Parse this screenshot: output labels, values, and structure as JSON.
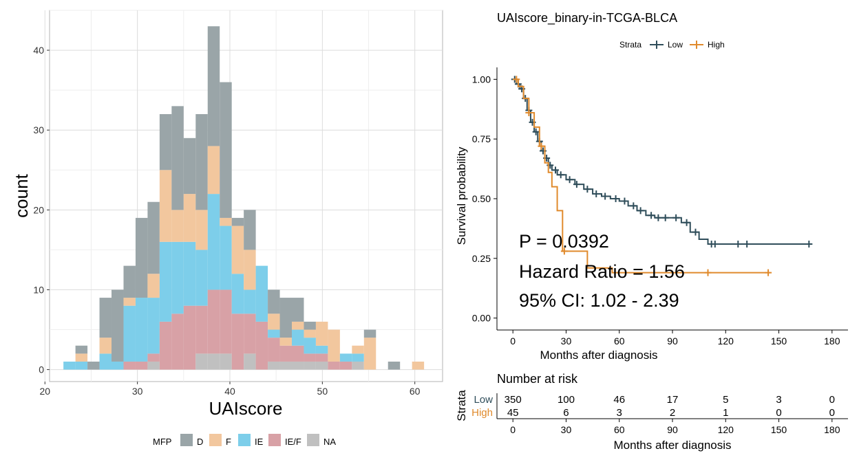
{
  "histogram": {
    "chart_data": {
      "type": "bar",
      "stacked": true,
      "xlabel": "UAIscore",
      "ylabel": "count",
      "xlim": [
        20.5,
        63
      ],
      "ylim": [
        -1.5,
        45
      ],
      "xticks": [
        20,
        30,
        40,
        50,
        60
      ],
      "yticks": [
        0,
        10,
        20,
        30,
        40
      ],
      "bin_width": 1.3,
      "grid": true,
      "legend": {
        "title": "MFP",
        "placement": "bottom",
        "entries": [
          {
            "name": "D",
            "color": "#9AA5A8"
          },
          {
            "name": "F",
            "color": "#F2C79E"
          },
          {
            "name": "IE",
            "color": "#7DCEEA"
          },
          {
            "name": "IE/F",
            "color": "#D8A1A6"
          },
          {
            "name": "NA",
            "color": "#C0C0C0"
          }
        ]
      },
      "bins": [
        {
          "x": 22.65,
          "NA": 0,
          "IE/F": 0,
          "IE": 1,
          "F": 0,
          "D": 0
        },
        {
          "x": 23.95,
          "NA": 0,
          "IE/F": 0,
          "IE": 1,
          "F": 1,
          "D": 1
        },
        {
          "x": 25.25,
          "NA": 0,
          "IE/F": 0,
          "IE": 0,
          "F": 0,
          "D": 1
        },
        {
          "x": 26.55,
          "NA": 0,
          "IE/F": 0,
          "IE": 2,
          "F": 2,
          "D": 5
        },
        {
          "x": 27.85,
          "NA": 0,
          "IE/F": 0,
          "IE": 1,
          "F": 0,
          "D": 9
        },
        {
          "x": 29.15,
          "NA": 0,
          "IE/F": 1,
          "IE": 7,
          "F": 1,
          "D": 4
        },
        {
          "x": 30.45,
          "NA": 0,
          "IE/F": 1,
          "IE": 8,
          "F": 0,
          "D": 10
        },
        {
          "x": 31.75,
          "NA": 1,
          "IE/F": 1,
          "IE": 7,
          "F": 3,
          "D": 9
        },
        {
          "x": 33.05,
          "NA": 0,
          "IE/F": 6,
          "IE": 10,
          "F": 9,
          "D": 7
        },
        {
          "x": 34.35,
          "NA": 0,
          "IE/F": 7,
          "IE": 9,
          "F": 4,
          "D": 13
        },
        {
          "x": 35.65,
          "NA": 0,
          "IE/F": 8,
          "IE": 8,
          "F": 6,
          "D": 7
        },
        {
          "x": 36.95,
          "NA": 2,
          "IE/F": 6,
          "IE": 7,
          "F": 5,
          "D": 12
        },
        {
          "x": 38.25,
          "NA": 2,
          "IE/F": 8,
          "IE": 12,
          "F": 6,
          "D": 15
        },
        {
          "x": 39.55,
          "NA": 2,
          "IE/F": 8,
          "IE": 8,
          "F": 1,
          "D": 17
        },
        {
          "x": 40.85,
          "NA": 0,
          "IE/F": 7,
          "IE": 5,
          "F": 6,
          "D": 1
        },
        {
          "x": 42.15,
          "NA": 2,
          "IE/F": 5,
          "IE": 3,
          "F": 5,
          "D": 5
        },
        {
          "x": 43.45,
          "NA": 0,
          "IE/F": 6,
          "IE": 7,
          "F": 0,
          "D": 0
        },
        {
          "x": 44.75,
          "NA": 1,
          "IE/F": 3,
          "IE": 1,
          "F": 2,
          "D": 3
        },
        {
          "x": 46.05,
          "NA": 1,
          "IE/F": 2,
          "IE": 0,
          "F": 1,
          "D": 5
        },
        {
          "x": 47.35,
          "NA": 1,
          "IE/F": 2,
          "IE": 2,
          "F": 1,
          "D": 3
        },
        {
          "x": 48.65,
          "NA": 1,
          "IE/F": 1,
          "IE": 2,
          "F": 1,
          "D": 1
        },
        {
          "x": 49.95,
          "NA": 1,
          "IE/F": 1,
          "IE": 1,
          "F": 3,
          "D": 0
        },
        {
          "x": 51.25,
          "NA": 0,
          "IE/F": 1,
          "IE": 0,
          "F": 4,
          "D": 0
        },
        {
          "x": 52.55,
          "NA": 0,
          "IE/F": 1,
          "IE": 1,
          "F": 0,
          "D": 0
        },
        {
          "x": 53.85,
          "NA": 1,
          "IE/F": 0,
          "IE": 1,
          "F": 1,
          "D": 0
        },
        {
          "x": 55.15,
          "NA": 0,
          "IE/F": 0,
          "IE": 0,
          "F": 4,
          "D": 1
        },
        {
          "x": 57.75,
          "NA": 0,
          "IE/F": 0,
          "IE": 0,
          "F": 0,
          "D": 1
        },
        {
          "x": 60.35,
          "NA": 0,
          "IE/F": 0,
          "IE": 0,
          "F": 1,
          "D": 0
        }
      ]
    }
  },
  "km": {
    "chart_data": {
      "type": "line",
      "title": "UAIscore_binary-in-TCGA-BLCA",
      "xlabel": "Months after diagnosis",
      "ylabel": "Survival probability",
      "xlim": [
        -9,
        189
      ],
      "ylim": [
        -0.05,
        1.05
      ],
      "xticks": [
        0,
        30,
        60,
        90,
        120,
        150,
        180
      ],
      "yticks": [
        0.0,
        0.25,
        0.5,
        0.75,
        1.0
      ],
      "ytick_labels": [
        "0.00",
        "0.25",
        "0.50",
        "0.75",
        "1.00"
      ],
      "legend": {
        "title": "Strata",
        "placement": "top"
      },
      "series": [
        {
          "name": "Low",
          "color": "#2F4D5A",
          "x": [
            0,
            2,
            4,
            6,
            8,
            10,
            12,
            14,
            16,
            18,
            20,
            22,
            25,
            30,
            35,
            40,
            45,
            50,
            55,
            60,
            65,
            70,
            75,
            80,
            85,
            90,
            95,
            100,
            105,
            110,
            115,
            120,
            168
          ],
          "y": [
            1.0,
            0.98,
            0.96,
            0.92,
            0.87,
            0.82,
            0.78,
            0.74,
            0.7,
            0.67,
            0.64,
            0.62,
            0.6,
            0.58,
            0.56,
            0.54,
            0.52,
            0.51,
            0.5,
            0.49,
            0.47,
            0.45,
            0.43,
            0.42,
            0.42,
            0.42,
            0.4,
            0.36,
            0.33,
            0.31,
            0.31,
            0.31,
            0.31
          ],
          "censor_x": [
            1,
            3,
            5,
            7,
            9,
            11,
            13,
            15,
            17,
            19,
            21,
            24,
            27,
            32,
            36,
            42,
            47,
            52,
            58,
            63,
            68,
            72,
            78,
            82,
            86,
            92,
            98,
            103,
            112,
            114,
            127,
            132,
            167
          ]
        },
        {
          "name": "High",
          "color": "#E08A2C",
          "x": [
            0,
            3,
            6,
            9,
            12,
            15,
            18,
            20,
            22,
            25,
            28,
            42,
            56,
            145
          ],
          "y": [
            1.0,
            0.97,
            0.92,
            0.86,
            0.8,
            0.72,
            0.65,
            0.61,
            0.55,
            0.45,
            0.28,
            0.21,
            0.19,
            0.19
          ],
          "censor_x": [
            2,
            9,
            16,
            29,
            110,
            144
          ]
        }
      ],
      "annotations": [
        "P = 0.0392",
        "Hazard Ratio = 1.56",
        "95% CI: 1.02 - 2.39"
      ]
    }
  },
  "risk": {
    "title": "Number at risk",
    "ylabel": "Strata",
    "xlabel": "Months after diagnosis",
    "xticks": [
      0,
      30,
      60,
      90,
      120,
      150,
      180
    ],
    "rows": [
      {
        "label": "Low",
        "color": "#2F4D5A",
        "values": [
          "350",
          "100",
          "46",
          "17",
          "5",
          "3",
          "0"
        ]
      },
      {
        "label": "High",
        "color": "#E08A2C",
        "values": [
          "45",
          "6",
          "3",
          "2",
          "1",
          "0",
          "0"
        ]
      }
    ]
  }
}
